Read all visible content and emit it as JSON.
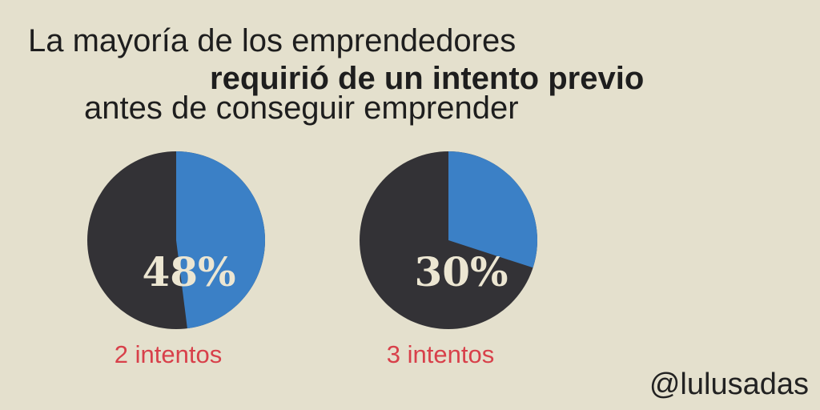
{
  "header": {
    "line1": "La mayoría de los emprendedores",
    "line2": "requirió de un intento previo",
    "line3": "antes de conseguir emprender"
  },
  "chart_data": [
    {
      "type": "pie",
      "categories": [
        "2 intentos"
      ],
      "values": [
        48
      ],
      "value_labels": [
        "48%"
      ],
      "color": "#3b80c6",
      "rest_color": "#333236"
    },
    {
      "type": "pie",
      "categories": [
        "3 intentos"
      ],
      "values": [
        30
      ],
      "value_labels": [
        "30%"
      ],
      "color": "#3b80c6",
      "rest_color": "#333236"
    }
  ],
  "footer": "@lulusadas"
}
